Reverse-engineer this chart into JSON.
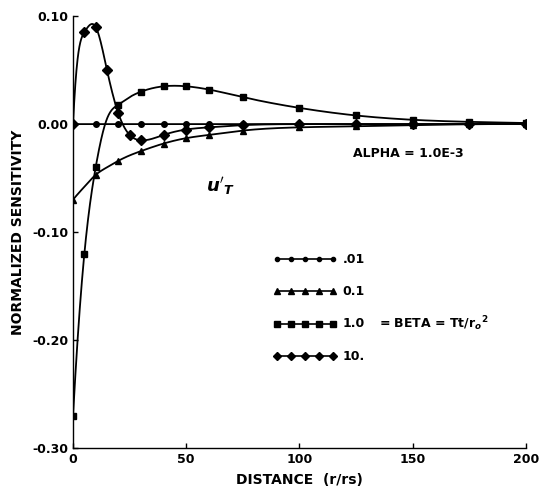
{
  "xlabel": "DISTANCE  (r/rs)",
  "ylabel": "NORMALIZED SENSITIVITY",
  "xlim": [
    0,
    200
  ],
  "ylim": [
    -0.3,
    0.1
  ],
  "xticks": [
    0,
    50,
    100,
    150,
    200
  ],
  "yticks": [
    -0.3,
    -0.2,
    -0.1,
    0.0,
    0.1
  ],
  "alpha_text": "ALPHA = 1.0E-3",
  "legend_labels": [
    ".01",
    "0.1",
    "1.0",
    "10."
  ],
  "beta_label": "BETA = Tt/r",
  "background_color": "white"
}
